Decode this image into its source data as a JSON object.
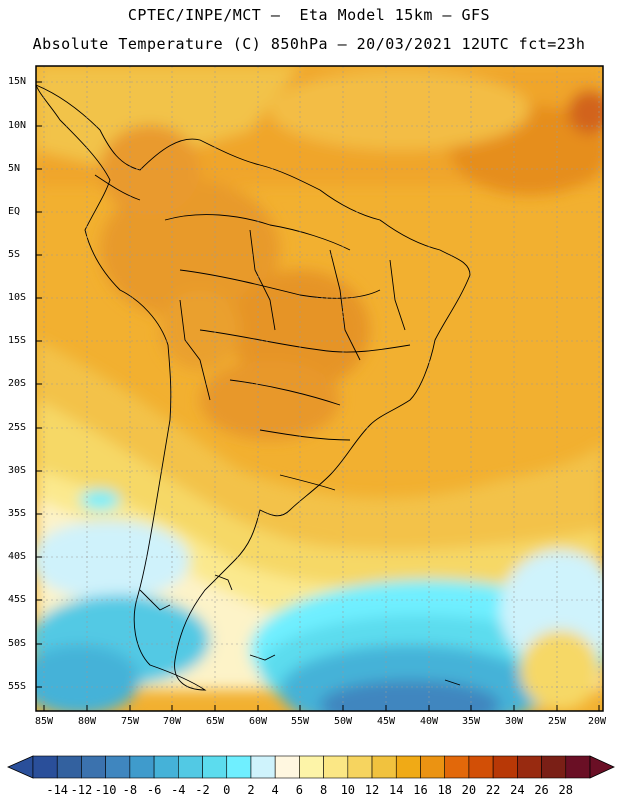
{
  "header": {
    "line1": "CPTEC/INPE/MCT —  Eta Model 15km — GFS",
    "line2": "Absolute Temperature (C) 850hPa — 20/03/2021 12UTC fct=23h"
  },
  "map": {
    "lat_labels": [
      "15N",
      "10N",
      "5N",
      "EQ",
      "5S",
      "10S",
      "15S",
      "20S",
      "25S",
      "30S",
      "35S",
      "40S",
      "45S",
      "50S",
      "55S"
    ],
    "lon_labels": [
      "85W",
      "80W",
      "75W",
      "70W",
      "65W",
      "60W",
      "55W",
      "50W",
      "45W",
      "40W",
      "35W",
      "30W",
      "25W",
      "20W"
    ]
  },
  "colorbar": {
    "labels": [
      "-14",
      "-12",
      "-10",
      "-8",
      "-6",
      "-4",
      "-2",
      "0",
      "2",
      "4",
      "6",
      "8",
      "10",
      "12",
      "14",
      "16",
      "18",
      "20",
      "22",
      "24",
      "26",
      "28"
    ],
    "colors": [
      "#2a4f9a",
      "#33619f",
      "#3b72ae",
      "#3f86bf",
      "#3f9bcc",
      "#45b2d8",
      "#52c9e4",
      "#5cdcee",
      "#6fefff",
      "#cff3fc",
      "#fff7e0",
      "#fdf4a8",
      "#fbe785",
      "#f6d45f",
      "#f1c23e",
      "#f0aa16",
      "#eb9312",
      "#e2680a",
      "#d24f06",
      "#b83806",
      "#982a10",
      "#7a1f16",
      "#6a0f25"
    ]
  }
}
